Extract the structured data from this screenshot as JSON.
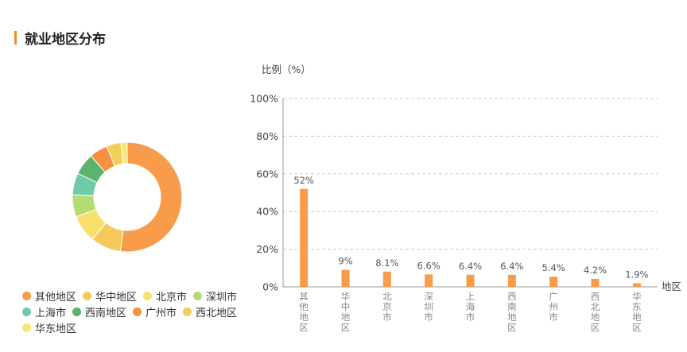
{
  "section": {
    "title": "就业地区分布"
  },
  "chart_data": [
    {
      "type": "pie",
      "subtype": "donut",
      "categories": [
        "其他地区",
        "华中地区",
        "北京市",
        "深圳市",
        "上海市",
        "西南地区",
        "广州市",
        "西北地区",
        "华东地区"
      ],
      "values": [
        52,
        9,
        8.1,
        6.6,
        6.4,
        6.4,
        5.4,
        4.2,
        1.9
      ],
      "colors": [
        "#f89b4a",
        "#f7c85c",
        "#f7e06b",
        "#b5dc72",
        "#6fcaa8",
        "#5ab46e",
        "#f5913f",
        "#f4cf57",
        "#f9e676"
      ],
      "legend_position": "bottom"
    },
    {
      "type": "bar",
      "categories": [
        "其他地区",
        "华中地区",
        "北京市",
        "深圳市",
        "上海市",
        "西南地区",
        "广州市",
        "西北地区",
        "华东地区"
      ],
      "values": [
        52,
        9,
        8.1,
        6.6,
        6.4,
        6.4,
        5.4,
        4.2,
        1.9
      ],
      "data_labels": [
        "52%",
        "9%",
        "8.1%",
        "6.6%",
        "6.4%",
        "6.4%",
        "5.4%",
        "4.2%",
        "1.9%"
      ],
      "ylabel": "比例（%）",
      "xlabel": "地区",
      "ylim": [
        0,
        100
      ],
      "yticks": [
        "0%",
        "20%",
        "40%",
        "60%",
        "80%",
        "100%"
      ],
      "grid": true,
      "bar_color": "#f89b4a"
    }
  ]
}
